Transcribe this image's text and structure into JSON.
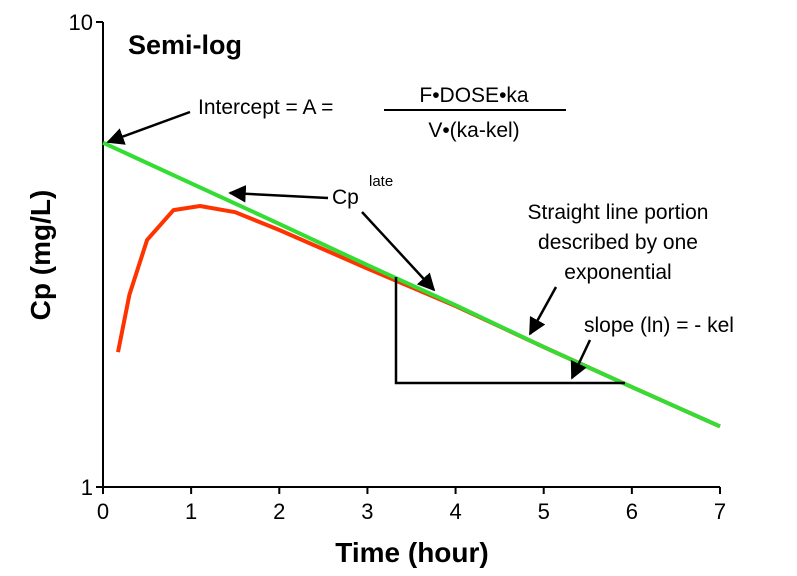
{
  "chart_data": {
    "type": "line",
    "title": "Semi-log",
    "xlabel": "Time (hour)",
    "ylabel": "Cp (mg/L)",
    "xlim": [
      0,
      7
    ],
    "xticks": [
      0,
      1,
      2,
      3,
      4,
      5,
      6,
      7
    ],
    "ylim": [
      1,
      10
    ],
    "yticks": [
      1,
      10
    ],
    "yscale": "log",
    "series": [
      {
        "color": "#ff3300",
        "x": [
          0.17,
          0.3,
          0.5,
          0.8,
          1.1,
          1.5,
          2,
          3,
          4,
          5,
          6,
          7
        ],
        "values": [
          1.95,
          2.59,
          3.4,
          3.94,
          4.02,
          3.9,
          3.57,
          2.95,
          2.45,
          2.0,
          1.64,
          1.35
        ]
      },
      {
        "color": "#33dd33",
        "x": [
          0,
          1,
          2,
          3,
          4,
          5,
          6,
          7
        ],
        "values": [
          5.5,
          4.5,
          3.68,
          3.0,
          2.46,
          2.0,
          1.64,
          1.35
        ]
      }
    ],
    "annotations": [
      "Intercept = A =",
      "F•DOSE•ka",
      "V•(ka-kel)",
      "Cp",
      "late",
      "Straight line portion",
      "described by one",
      "exponential",
      "slope (ln) = - kel"
    ]
  }
}
